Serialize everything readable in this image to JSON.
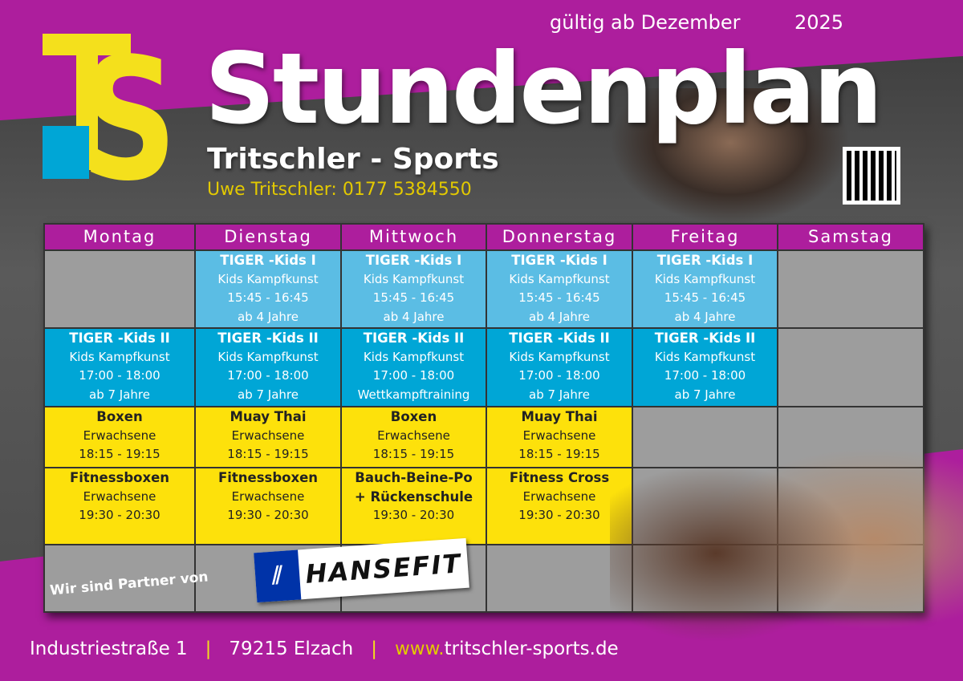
{
  "header": {
    "valid_from": "gültig ab Dezember",
    "year": "2025",
    "title": "Stundenplan",
    "subtitle": "Tritschler - Sports",
    "contact": "Uwe Tritschler:  0177 5384550",
    "logo_text": "TS"
  },
  "colors": {
    "purple": "#ad1e9d",
    "yellow": "#fde10b",
    "light_blue": "#5bbde4",
    "blue": "#00a6d6",
    "gray": "#9d9d9d"
  },
  "days": [
    "Montag",
    "Dienstag",
    "Mittwoch",
    "Donnerstag",
    "Freitag",
    "Samstag"
  ],
  "rows": [
    {
      "style": "lb",
      "cells": [
        null,
        [
          "TIGER -Kids I",
          "Kids Kampfkunst",
          "15:45 - 16:45",
          "ab 4 Jahre"
        ],
        [
          "TIGER -Kids I",
          "Kids Kampfkunst",
          "15:45 - 16:45",
          "ab 4 Jahre"
        ],
        [
          "TIGER -Kids I",
          "Kids Kampfkunst",
          "15:45 - 16:45",
          "ab 4 Jahre"
        ],
        [
          "TIGER -Kids I",
          "Kids Kampfkunst",
          "15:45 - 16:45",
          "ab 4 Jahre"
        ],
        null
      ]
    },
    {
      "style": "db",
      "cells": [
        [
          "TIGER -Kids II",
          "Kids Kampfkunst",
          "17:00 - 18:00",
          "ab 7 Jahre"
        ],
        [
          "TIGER -Kids II",
          "Kids Kampfkunst",
          "17:00 - 18:00",
          "ab 7 Jahre"
        ],
        [
          "TIGER -Kids II",
          "Kids Kampfkunst",
          "17:00 - 18:00",
          "Wettkampftraining"
        ],
        [
          "TIGER -Kids II",
          "Kids Kampfkunst",
          "17:00 - 18:00",
          "ab 7 Jahre"
        ],
        [
          "TIGER -Kids II",
          "Kids Kampfkunst",
          "17:00 - 18:00",
          "ab 7 Jahre"
        ],
        null
      ]
    },
    {
      "style": "ye",
      "cells": [
        [
          "Boxen",
          "Erwachsene",
          "18:15 - 19:15"
        ],
        [
          "Muay Thai",
          "Erwachsene",
          "18:15 - 19:15"
        ],
        [
          "Boxen",
          "Erwachsene",
          "18:15 - 19:15"
        ],
        [
          "Muay Thai",
          "Erwachsene",
          "18:15 - 19:15"
        ],
        null,
        null
      ]
    },
    {
      "style": "ye",
      "cells": [
        [
          "Fitnessboxen",
          "Erwachsene",
          "19:30 - 20:30"
        ],
        [
          "Fitnessboxen",
          "Erwachsene",
          "19:30 - 20:30"
        ],
        [
          "Bauch-Beine-Po",
          "+ Rückenschule",
          "19:30 - 20:30"
        ],
        [
          "Fitness Cross",
          "Erwachsene",
          "19:30 - 20:30"
        ],
        null,
        null
      ]
    },
    {
      "style": "gr",
      "cells": [
        null,
        null,
        null,
        null,
        null,
        null
      ]
    }
  ],
  "partner": {
    "text": "Wir sind  Partner von",
    "brand": "HANSEFIT",
    "brand_mark": "⫽"
  },
  "footer": {
    "address": "Industriestraße 1",
    "city": "79215 Elzach",
    "www": "www.",
    "domain": "tritschler-sports.de"
  }
}
